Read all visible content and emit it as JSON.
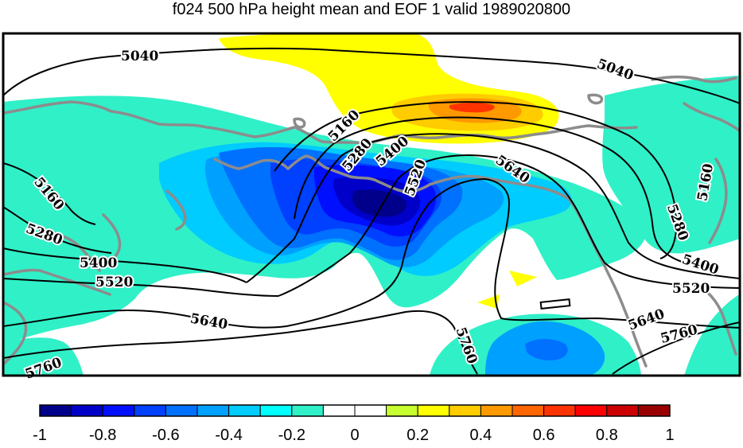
{
  "title": "f024 500 hPa height mean and EOF 1 valid 1989020800",
  "contour_labels": [
    "5040",
    "5040",
    "5160",
    "5160",
    "5160",
    "5280",
    "5280",
    "5280",
    "5400",
    "5400",
    "5400",
    "5520",
    "5520",
    "5520",
    "5640",
    "5640",
    "5640",
    "5760",
    "5760",
    "5760"
  ],
  "colorbar": {
    "ticks": [
      "-1",
      "-0.8",
      "-0.6",
      "-0.4",
      "-0.2",
      "0",
      "0.2",
      "0.4",
      "0.6",
      "0.8",
      "1"
    ],
    "colors": [
      "#00008b",
      "#0000c8",
      "#0010ff",
      "#0040ff",
      "#0070ff",
      "#00a0ff",
      "#00ccff",
      "#00ffff",
      "#30f0c8",
      "#ffffff",
      "#ffffff",
      "#c8ff30",
      "#ffff00",
      "#ffcc00",
      "#ff9900",
      "#ff6600",
      "#ff3300",
      "#ff0000",
      "#cc0000",
      "#990000"
    ]
  },
  "colors": {
    "continent_outline": "#8c8c8c",
    "contour_line": "#000000"
  }
}
